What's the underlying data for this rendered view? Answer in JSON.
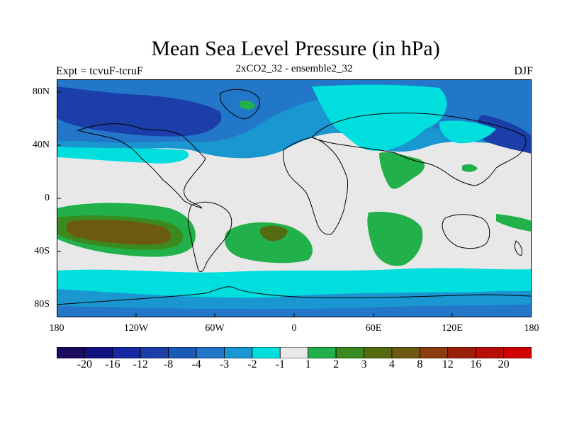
{
  "title": "Mean Sea Level Pressure (in hPa)",
  "subtitle_left": "Expt = tcvuF-tcruF",
  "subtitle_center": "2xCO2_32 - ensemble2_32",
  "subtitle_right": "DJF",
  "lat_labels": [
    "80N",
    "40N",
    "0",
    "40S",
    "80S"
  ],
  "lon_labels": [
    "180",
    "120W",
    "60W",
    "0",
    "60E",
    "120E",
    "180"
  ],
  "colorbar": {
    "colors": [
      "#1b0a5e",
      "#12127e",
      "#1628a0",
      "#1c3ea8",
      "#1a5bb8",
      "#2277c8",
      "#1a96d0",
      "#00dede",
      "#e8e8e8",
      "#22b04a",
      "#3a8a20",
      "#556b12",
      "#6b5a10",
      "#8a3e10",
      "#9c2008",
      "#b80e08",
      "#d00000"
    ],
    "labels": [
      "-20",
      "-16",
      "-12",
      "-8",
      "-4",
      "-3",
      "-2",
      "-1",
      "1",
      "2",
      "3",
      "4",
      "8",
      "12",
      "16",
      "20"
    ]
  },
  "palette": {
    "deep_blue": "#1c3ea8",
    "mid_blue": "#2277c8",
    "light_blue": "#1a96d0",
    "cyan": "#00dede",
    "neutral": "#e8e8e8",
    "green": "#22b04a",
    "olive": "#556b12",
    "brown": "#6b5a10"
  }
}
